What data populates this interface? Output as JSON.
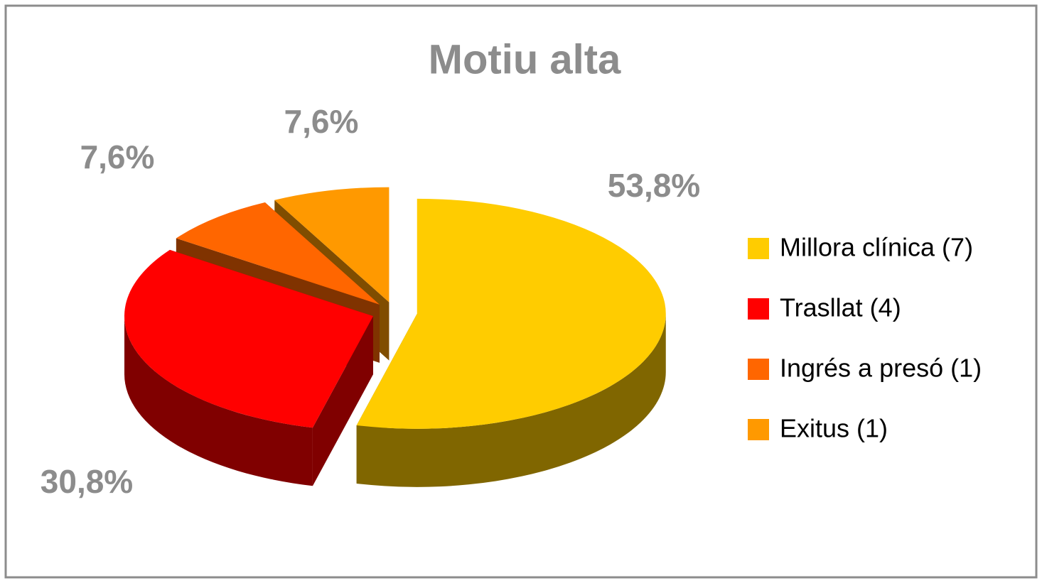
{
  "chart_data": {
    "type": "pie",
    "title": "Motiu alta",
    "categories": [
      "Millora clínica (7)",
      "Trasllat (4)",
      "Ingrés a presó (1)",
      "Exitus (1)"
    ],
    "values": [
      53.8,
      30.8,
      7.6,
      7.6
    ],
    "value_labels": [
      "53,8%",
      "30,8%",
      "7,6%",
      "7,6%"
    ],
    "colors": [
      "#ffcc00",
      "#ff0000",
      "#ff6600",
      "#ff9900"
    ],
    "legend": "right"
  }
}
